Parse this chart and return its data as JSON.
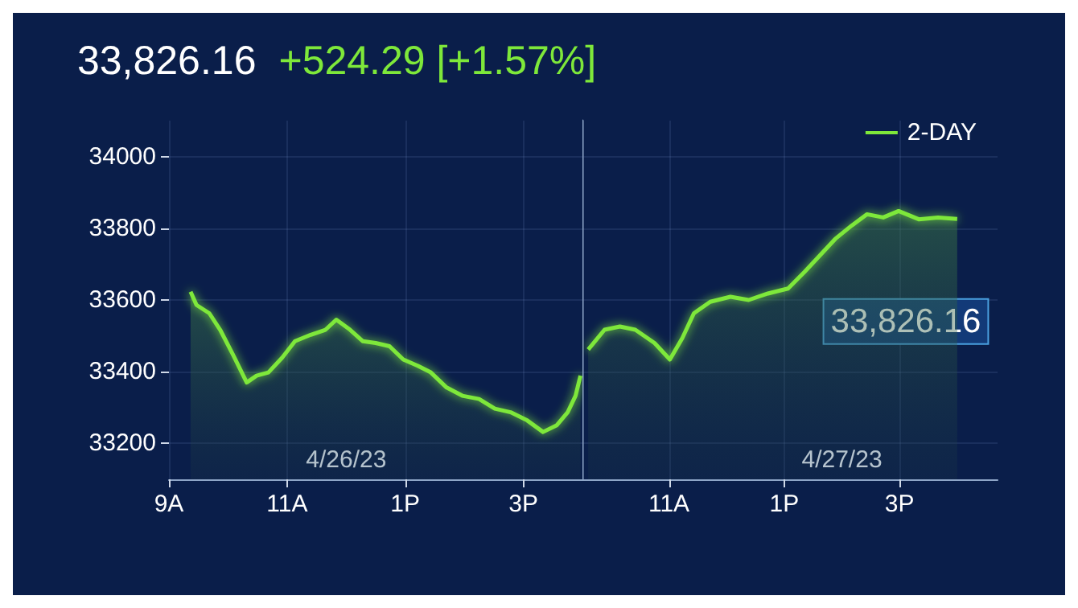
{
  "chart_data": [
    {
      "type": "area",
      "title": "33,826.16",
      "subtitle": "+524.29 [+1.57%]",
      "x": [
        "--04-26T09:22",
        "--04-26T09:28",
        "--04-26T09:41",
        "--04-26T09:52",
        "--04-26T10:05",
        "--04-26T10:19",
        "--04-26T10:29",
        "--04-26T10:41",
        "--04-26T10:55",
        "--04-26T11:08",
        "--04-26T11:24",
        "--04-26T11:39",
        "--04-26T11:50",
        "--04-26T12:04",
        "--04-26T12:17",
        "--04-26T12:30",
        "--04-26T12:44",
        "--04-26T12:58",
        "--04-26T13:13",
        "--04-26T13:26",
        "--04-26T13:42",
        "--04-26T13:58",
        "--04-26T14:15",
        "--04-26T14:31",
        "--04-26T14:47",
        "--04-26T15:04",
        "--04-26T15:20",
        "--04-26T15:34",
        "--04-26T15:45",
        "--04-26T15:53",
        "--04-26T15:58"
      ],
      "series": [
        {
          "color": "#7ee83a",
          "values": [
            33623,
            33586,
            33563,
            33517,
            33448,
            33370,
            33389,
            33398,
            33439,
            33485,
            33503,
            33517,
            33545,
            33517,
            33485,
            33480,
            33471,
            33434,
            33416,
            33398,
            33356,
            33333,
            33324,
            33297,
            33287,
            33264,
            33232,
            33251,
            33287,
            33333,
            33389
          ]
        }
      ],
      "xlim": [
        "--04-26T09:00",
        "--04-26T16:00"
      ],
      "ylim": [
        33100,
        34100
      ],
      "xticks": [
        {
          "value": "--04-26T09:00",
          "label": "9A"
        },
        {
          "value": "--04-26T11:00",
          "label": "11A"
        },
        {
          "value": "--04-26T13:00",
          "label": "1P"
        },
        {
          "value": "--04-26T15:00",
          "label": "3P"
        }
      ],
      "yticks": [
        33200,
        33400,
        33600,
        33800,
        34000
      ],
      "annotations": [
        "4/26/23"
      ],
      "grid": true,
      "marker": "none",
      "line_style": "solid"
    },
    {
      "type": "area",
      "x": [
        "--04-27T09:36",
        "--04-27T09:53",
        "--04-27T10:09",
        "--04-27T10:25",
        "--04-27T10:45",
        "--04-27T11:01",
        "--04-27T11:14",
        "--04-27T11:26",
        "--04-27T11:43",
        "--04-27T12:04",
        "--04-27T12:23",
        "--04-27T12:43",
        "--04-27T13:04",
        "--04-27T13:21",
        "--04-27T13:37",
        "--04-27T13:53",
        "--04-27T14:10",
        "--04-27T14:26",
        "--04-27T14:43",
        "--04-27T14:59",
        "--04-27T15:20",
        "--04-27T15:40",
        "--04-27T16:00"
      ],
      "series": [
        {
          "name": "2-DAY",
          "color": "#7ee83a",
          "values": [
            33462,
            33517,
            33526,
            33517,
            33480,
            33434,
            33494,
            33563,
            33595,
            33609,
            33600,
            33618,
            33632,
            33678,
            33724,
            33770,
            33807,
            33839,
            33830,
            33848,
            33825,
            33830,
            33826
          ]
        }
      ],
      "xlim": [
        "--04-27T09:30",
        "--04-27T16:42"
      ],
      "ylim": [
        33100,
        34100
      ],
      "xticks": [
        {
          "value": "--04-27T11:00",
          "label": "11A"
        },
        {
          "value": "--04-27T13:00",
          "label": "1P"
        },
        {
          "value": "--04-27T15:00",
          "label": "3P"
        }
      ],
      "yticks": [
        33200,
        33400,
        33600,
        33800,
        34000
      ],
      "annotations": [
        "4/27/23",
        "33,826.16"
      ],
      "tick_labels": "x",
      "grid": true,
      "legend": "top right",
      "marker": "none",
      "line_style": "solid"
    }
  ]
}
